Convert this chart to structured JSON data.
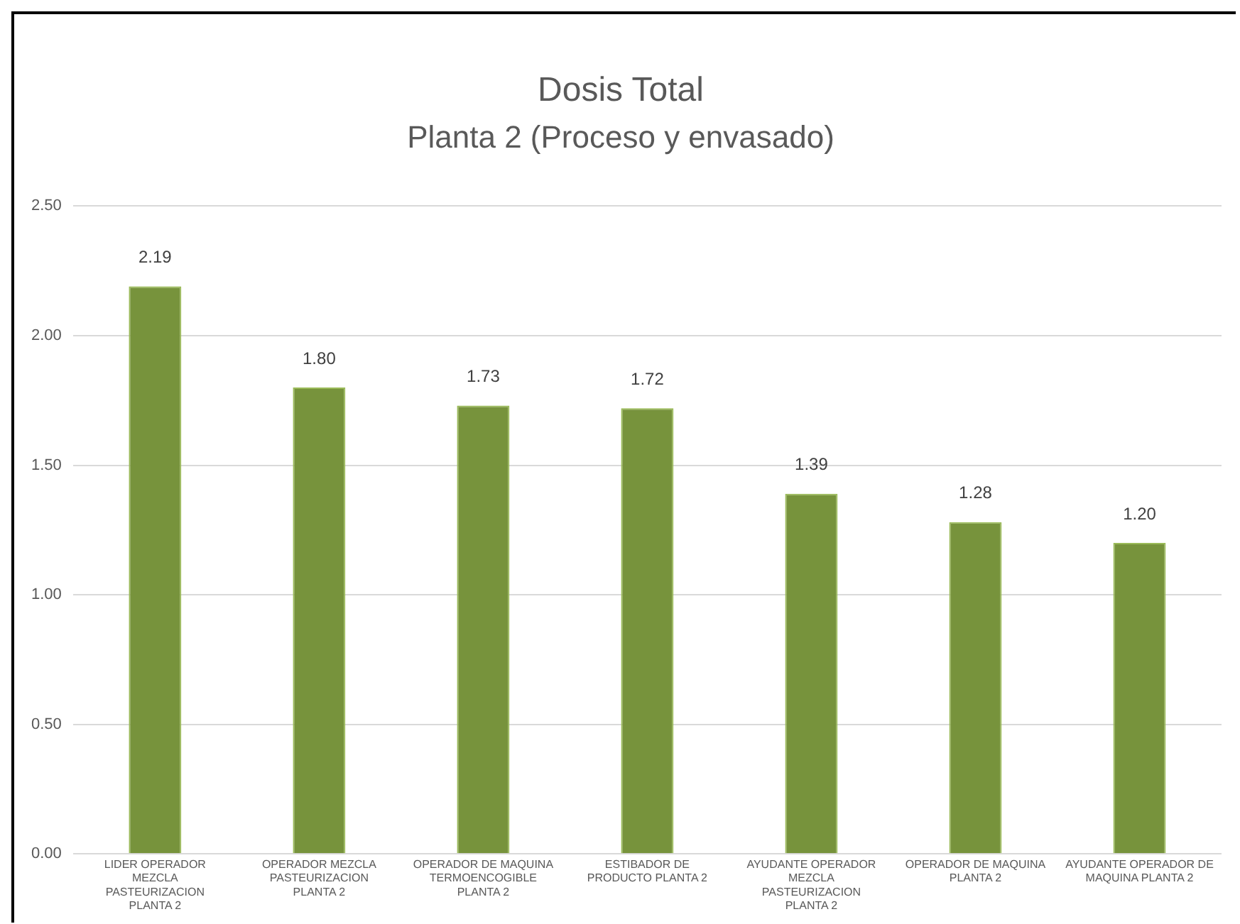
{
  "chart_data": {
    "type": "bar",
    "title": "Dosis Total",
    "subtitle": "Planta 2 (Proceso y envasado)",
    "categories": [
      "LIDER OPERADOR MEZCLA PASTEURIZACION PLANTA 2",
      "OPERADOR MEZCLA PASTEURIZACION PLANTA 2",
      "OPERADOR DE MAQUINA TERMOENCOGIBLE PLANTA 2",
      "ESTIBADOR DE PRODUCTO PLANTA 2",
      "AYUDANTE OPERADOR MEZCLA PASTEURIZACION PLANTA 2",
      "OPERADOR DE MAQUINA PLANTA 2",
      "AYUDANTE OPERADOR DE MAQUINA PLANTA 2"
    ],
    "values": [
      2.19,
      1.8,
      1.73,
      1.72,
      1.39,
      1.28,
      1.2
    ],
    "value_labels": [
      "2.19",
      "1.80",
      "1.73",
      "1.72",
      "1.39",
      "1.28",
      "1.20"
    ],
    "color": "#77933c",
    "ylim": [
      0,
      2.5
    ],
    "yticks": [
      {
        "value": 0,
        "label": "0.00"
      },
      {
        "value": 0.5,
        "label": "0.50"
      },
      {
        "value": 1,
        "label": "1.00"
      },
      {
        "value": 1.5,
        "label": "1.50"
      },
      {
        "value": 2,
        "label": "2.00"
      },
      {
        "value": 2.5,
        "label": "2.50"
      }
    ],
    "grid": "y",
    "legend": false
  }
}
